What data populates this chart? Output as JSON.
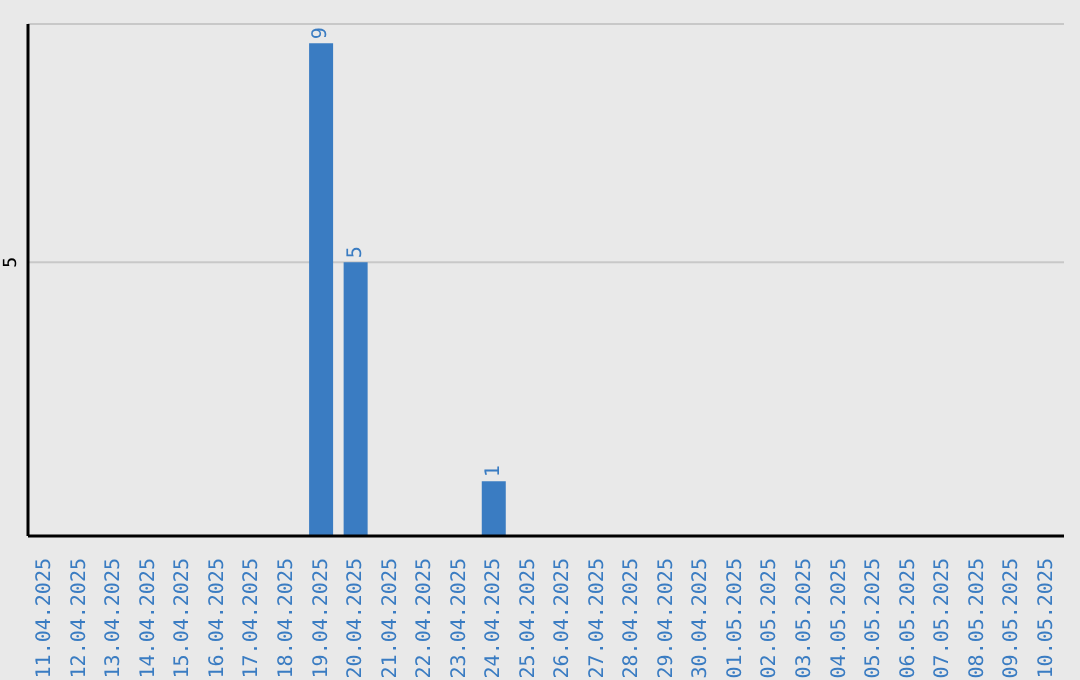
{
  "chart_data": {
    "type": "bar",
    "categories": [
      "11.04.2025",
      "12.04.2025",
      "13.04.2025",
      "14.04.2025",
      "15.04.2025",
      "16.04.2025",
      "17.04.2025",
      "18.04.2025",
      "19.04.2025",
      "20.04.2025",
      "21.04.2025",
      "22.04.2025",
      "23.04.2025",
      "24.04.2025",
      "25.04.2025",
      "26.04.2025",
      "27.04.2025",
      "28.04.2025",
      "29.04.2025",
      "30.04.2025",
      "01.05.2025",
      "02.05.2025",
      "03.05.2025",
      "04.05.2025",
      "05.05.2025",
      "06.05.2025",
      "07.05.2025",
      "08.05.2025",
      "09.05.2025",
      "10.05.2025"
    ],
    "values": [
      0,
      0,
      0,
      0,
      0,
      0,
      0,
      0,
      9,
      5,
      0,
      0,
      0,
      1,
      0,
      0,
      0,
      0,
      0,
      0,
      0,
      0,
      0,
      0,
      0,
      0,
      0,
      0,
      0,
      0
    ],
    "value_labels": [
      null,
      null,
      null,
      null,
      null,
      null,
      null,
      null,
      "9",
      "5",
      null,
      null,
      null,
      "1",
      null,
      null,
      null,
      null,
      null,
      null,
      null,
      null,
      null,
      null,
      null,
      null,
      null,
      null,
      null,
      null
    ],
    "color": "#3a7cc2",
    "ylim": [
      0,
      9.35
    ],
    "yticks": [
      5
    ],
    "grid": "y"
  }
}
